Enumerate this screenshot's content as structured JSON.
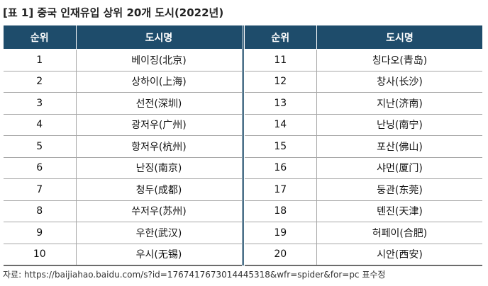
{
  "title": "[표 1] 중국 인재유입 상위 20개 도시(2022년)",
  "table": {
    "headers": {
      "rank": "순위",
      "city": "도시명"
    },
    "left_rows": [
      {
        "rank": "1",
        "city": "베이징(北京)"
      },
      {
        "rank": "2",
        "city": "상하이(上海)"
      },
      {
        "rank": "3",
        "city": "선전(深圳)"
      },
      {
        "rank": "4",
        "city": "광저우(广州)"
      },
      {
        "rank": "5",
        "city": "항저우(杭州)"
      },
      {
        "rank": "6",
        "city": "난징(南京)"
      },
      {
        "rank": "7",
        "city": "청두(成都)"
      },
      {
        "rank": "8",
        "city": "쑤저우(苏州)"
      },
      {
        "rank": "9",
        "city": "우한(武汉)"
      },
      {
        "rank": "10",
        "city": "우시(无锡)"
      }
    ],
    "right_rows": [
      {
        "rank": "11",
        "city": "칭다오(青岛)"
      },
      {
        "rank": "12",
        "city": "창사(长沙)"
      },
      {
        "rank": "13",
        "city": "지난(济南)"
      },
      {
        "rank": "14",
        "city": "난닝(南宁)"
      },
      {
        "rank": "15",
        "city": "포산(佛山)"
      },
      {
        "rank": "16",
        "city": "샤먼(厦门)"
      },
      {
        "rank": "17",
        "city": "둥관(东莞)"
      },
      {
        "rank": "18",
        "city": "톈진(天津)"
      },
      {
        "rank": "19",
        "city": "허페이(合肥)"
      },
      {
        "rank": "20",
        "city": "시안(西安)"
      }
    ]
  },
  "source": "자료: https://baijiahao.baidu.com/s?id=1767417673014445318&wfr=spider&for=pc 표수정",
  "colors": {
    "header_bg": "#1e4c6b",
    "header_text": "#ffffff",
    "row_line": "#a7a7a7"
  }
}
